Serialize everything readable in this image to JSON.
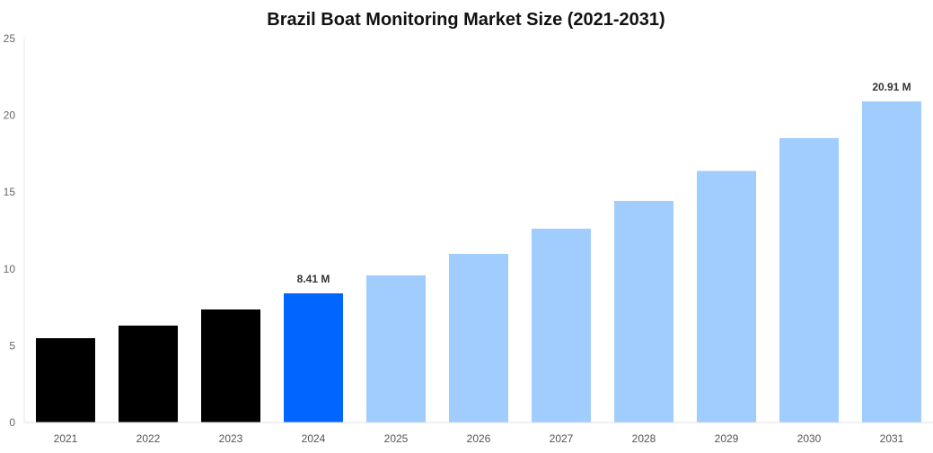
{
  "chart_data": {
    "type": "bar",
    "title": "Brazil Boat Monitoring Market Size (2021-2031)",
    "xlabel": "",
    "ylabel": "",
    "ylim": [
      0,
      25
    ],
    "yticks": [
      0,
      5,
      10,
      15,
      20,
      25
    ],
    "grid": false,
    "categories": [
      "2021",
      "2022",
      "2023",
      "2024",
      "2025",
      "2026",
      "2027",
      "2028",
      "2029",
      "2030",
      "2031"
    ],
    "values": [
      5.49,
      6.31,
      7.36,
      8.41,
      9.58,
      10.98,
      12.62,
      14.43,
      16.38,
      18.52,
      20.91
    ],
    "colors": [
      "#000000",
      "#000000",
      "#000000",
      "#0066ff",
      "#a0cdfd",
      "#a0cdfd",
      "#a0cdfd",
      "#a0cdfd",
      "#a0cdfd",
      "#a0cdfd",
      "#a0cdfd"
    ],
    "data_labels": {
      "2024": "8.41 M",
      "2031": "20.91 M"
    }
  }
}
